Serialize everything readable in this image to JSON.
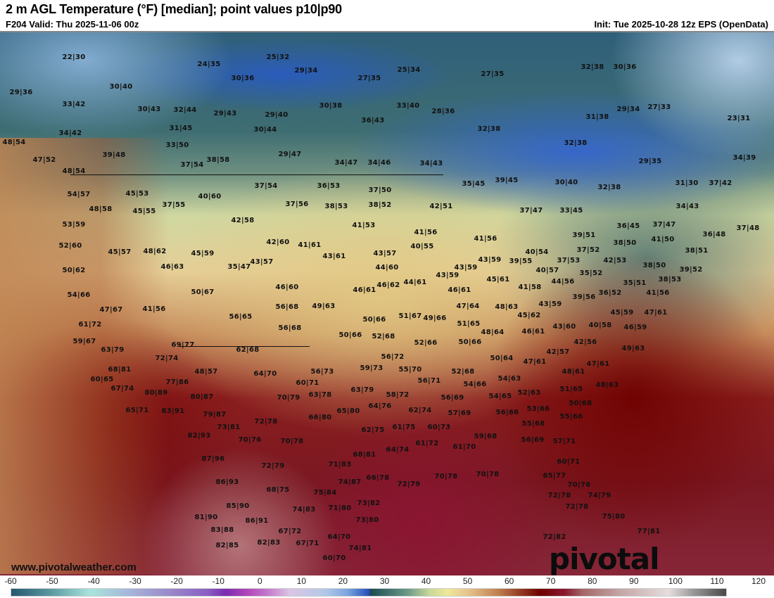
{
  "header": {
    "title": "2 m AGL Temperature (°F) [median]; point values p10|p90",
    "valid": "F204 Valid: Thu 2025-11-06 00z",
    "init": "Init: Tue 2025-10-28 12z EPS (OpenData)"
  },
  "map": {
    "watermark_url": "www.pivotalweather.com",
    "logo": "pivotal weather",
    "point_values": [
      "22|30",
      "24|35",
      "30|36",
      "29|36",
      "30|40",
      "33|42",
      "30|43",
      "32|44",
      "29|43",
      "34|42",
      "31|45",
      "48|54",
      "33|50",
      "39|48",
      "47|52",
      "37|54",
      "38|58",
      "48|54",
      "54|57",
      "45|53",
      "40|60",
      "37|55",
      "48|58",
      "45|55",
      "25|32",
      "29|34",
      "27|35",
      "25|34",
      "27|35",
      "30|38",
      "33|40",
      "29|40",
      "36|43",
      "28|36",
      "30|44",
      "32|38",
      "29|47",
      "34|47",
      "34|46",
      "34|43",
      "35|45",
      "39|45",
      "37|54",
      "36|53",
      "37|50",
      "37|56",
      "38|53",
      "38|52",
      "42|51",
      "32|38",
      "30|36",
      "29|34",
      "27|33",
      "31|38",
      "23|31",
      "32|38",
      "29|35",
      "34|39",
      "30|40",
      "32|38",
      "31|30",
      "37|42",
      "34|43",
      "37|47",
      "33|45",
      "53|59",
      "52|60",
      "45|57",
      "48|62",
      "45|59",
      "42|58",
      "46|63",
      "35|47",
      "50|62",
      "54|66",
      "50|67",
      "47|67",
      "41|56",
      "56|65",
      "61|72",
      "59|67",
      "63|79",
      "69|77",
      "62|68",
      "72|74",
      "48|57",
      "68|81",
      "60|65",
      "77|86",
      "41|53",
      "41|56",
      "41|56",
      "40|55",
      "42|60",
      "41|61",
      "43|61",
      "43|57",
      "43|59",
      "39|55",
      "43|57",
      "44|60",
      "43|59",
      "43|59",
      "44|61",
      "46|62",
      "45|61",
      "46|60",
      "46|61",
      "46|61",
      "56|68",
      "49|63",
      "47|64",
      "48|63",
      "51|67",
      "49|66",
      "50|66",
      "51|65",
      "56|68",
      "48|64",
      "50|66",
      "52|68",
      "52|66",
      "50|66",
      "50|64",
      "56|72",
      "59|73",
      "55|70",
      "56|73",
      "52|68",
      "64|70",
      "56|71",
      "60|71",
      "54|66",
      "54|63",
      "39|51",
      "40|54",
      "37|52",
      "38|50",
      "42|53",
      "36|45",
      "37|47",
      "41|50",
      "36|48",
      "37|48",
      "38|51",
      "37|53",
      "38|50",
      "39|52",
      "40|57",
      "35|52",
      "44|56",
      "38|53",
      "35|51",
      "36|52",
      "41|56",
      "39|56",
      "41|58",
      "43|59",
      "45|59",
      "47|61",
      "45|62",
      "43|60",
      "40|58",
      "46|61",
      "46|59",
      "42|56",
      "49|63",
      "42|57",
      "47|61",
      "47|61",
      "48|61",
      "48|63",
      "67|74",
      "80|89",
      "80|87",
      "65|71",
      "83|91",
      "79|87",
      "73|81",
      "82|93",
      "70|76",
      "87|96",
      "86|93",
      "85|90",
      "81|90",
      "86|91",
      "83|88",
      "82|85",
      "63|79",
      "58|72",
      "63|78",
      "70|79",
      "56|69",
      "64|76",
      "65|80",
      "62|74",
      "57|69",
      "66|80",
      "72|78",
      "62|75",
      "61|75",
      "60|73",
      "70|78",
      "61|72",
      "59|68",
      "64|74",
      "61|70",
      "68|81",
      "71|83",
      "72|79",
      "70|78",
      "70|78",
      "66|78",
      "72|79",
      "74|87",
      "68|75",
      "75|84",
      "73|82",
      "74|83",
      "71|80",
      "73|80",
      "67|72",
      "64|70",
      "67|71",
      "82|83",
      "74|81",
      "60|70",
      "54|65",
      "56|66",
      "51|65",
      "52|63",
      "50|68",
      "53|66",
      "55|66",
      "55|68",
      "56|69",
      "57|71",
      "60|71",
      "65|77",
      "70|78",
      "72|78",
      "74|79",
      "72|78",
      "75|80",
      "77|81",
      "72|82"
    ]
  },
  "colorbar": {
    "ticks": [
      "-60",
      "-50",
      "-40",
      "-30",
      "-20",
      "-10",
      "0",
      "10",
      "20",
      "30",
      "40",
      "50",
      "60",
      "70",
      "80",
      "90",
      "100",
      "110",
      "120"
    ],
    "range_f": [
      -60,
      120
    ]
  }
}
